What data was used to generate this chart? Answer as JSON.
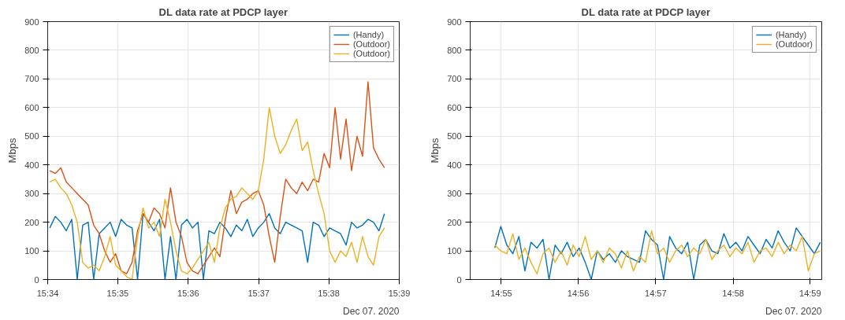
{
  "chart_data": [
    {
      "type": "line",
      "title": "DL data rate at PDCP layer",
      "ylabel": "Mbps",
      "annotations": [
        "Dec 07. 2020"
      ],
      "xlim": [
        15.5667,
        15.65
      ],
      "xticks": [
        {
          "value": 15.5667,
          "label": "15:34"
        },
        {
          "value": 15.5833,
          "label": "15:35"
        },
        {
          "value": 15.6,
          "label": "15:36"
        },
        {
          "value": 15.6167,
          "label": "15:37"
        },
        {
          "value": 15.6333,
          "label": "15:38"
        },
        {
          "value": 15.65,
          "label": "15:39"
        }
      ],
      "ylim": [
        0,
        900
      ],
      "yticks": [
        0,
        100,
        200,
        300,
        400,
        500,
        600,
        700,
        800,
        900
      ],
      "grid": true,
      "legend": "top right",
      "line_style": "solid",
      "x": [
        15.5672,
        15.5685,
        15.5698,
        15.5711,
        15.5724,
        15.5737,
        15.575,
        15.5763,
        15.5776,
        15.5789,
        15.5802,
        15.5815,
        15.5828,
        15.5841,
        15.5854,
        15.5867,
        15.588,
        15.5893,
        15.5906,
        15.5919,
        15.5932,
        15.5945,
        15.5958,
        15.5971,
        15.5984,
        15.5997,
        15.601,
        15.6023,
        15.6036,
        15.6049,
        15.6062,
        15.6075,
        15.6088,
        15.6101,
        15.6114,
        15.6127,
        15.614,
        15.6153,
        15.6166,
        15.6179,
        15.6192,
        15.6205,
        15.6218,
        15.6231,
        15.6244,
        15.6257,
        15.627,
        15.6283,
        15.6296,
        15.6309,
        15.6322,
        15.6335,
        15.6348,
        15.6361,
        15.6374,
        15.6387,
        15.64,
        15.6413,
        15.6426,
        15.6439,
        15.6452,
        15.6465
      ],
      "series": [
        {
          "name": "(Handy)",
          "color": "#0072bd",
          "values": [
            180,
            220,
            200,
            170,
            210,
            0,
            190,
            200,
            0,
            160,
            180,
            200,
            150,
            210,
            190,
            180,
            0,
            230,
            200,
            170,
            210,
            0,
            150,
            0,
            190,
            210,
            180,
            200,
            0,
            170,
            160,
            200,
            180,
            150,
            190,
            170,
            210,
            150,
            180,
            200,
            230,
            180,
            160,
            200,
            190,
            180,
            170,
            60,
            200,
            190,
            150,
            180,
            170,
            160,
            120,
            200,
            180,
            190,
            210,
            200,
            170,
            230
          ]
        },
        {
          "name": "(Outdoor)",
          "color": "#d95319",
          "values": [
            380,
            370,
            390,
            340,
            320,
            300,
            280,
            260,
            190,
            160,
            100,
            60,
            90,
            30,
            20,
            60,
            170,
            230,
            200,
            250,
            230,
            180,
            320,
            200,
            150,
            60,
            30,
            20,
            50,
            80,
            110,
            80,
            210,
            310,
            230,
            270,
            280,
            300,
            310,
            260,
            150,
            60,
            220,
            350,
            320,
            300,
            340,
            310,
            350,
            340,
            440,
            390,
            600,
            420,
            560,
            380,
            500,
            430,
            690,
            460,
            420,
            390
          ]
        },
        {
          "name": "(Outdoor)",
          "color": "#edb120",
          "values": [
            340,
            350,
            320,
            300,
            260,
            200,
            60,
            40,
            50,
            30,
            80,
            150,
            50,
            30,
            10,
            0,
            150,
            250,
            180,
            200,
            150,
            280,
            200,
            100,
            30,
            20,
            40,
            70,
            100,
            130,
            60,
            180,
            250,
            280,
            290,
            320,
            300,
            280,
            310,
            420,
            600,
            500,
            440,
            470,
            520,
            560,
            450,
            480,
            380,
            300,
            230,
            100,
            60,
            100,
            80,
            130,
            60,
            150,
            80,
            50,
            150,
            180
          ]
        }
      ]
    },
    {
      "type": "line",
      "title": "DL data rate at PDCP layer",
      "ylabel": "Mbps",
      "annotations": [
        "Dec 07. 2020"
      ],
      "xlim": [
        14.91,
        14.9858
      ],
      "xticks": [
        {
          "value": 14.9167,
          "label": "14:55"
        },
        {
          "value": 14.9333,
          "label": "14:56"
        },
        {
          "value": 14.95,
          "label": "14:57"
        },
        {
          "value": 14.9667,
          "label": "14:58"
        },
        {
          "value": 14.9833,
          "label": "14:59"
        }
      ],
      "ylim": [
        0,
        900
      ],
      "yticks": [
        0,
        100,
        200,
        300,
        400,
        500,
        600,
        700,
        800,
        900
      ],
      "grid": true,
      "legend": "top right",
      "line_style": "solid",
      "x": [
        14.9153,
        14.9166,
        14.9179,
        14.9192,
        14.9205,
        14.9218,
        14.9231,
        14.9244,
        14.9257,
        14.927,
        14.9283,
        14.9296,
        14.9309,
        14.9322,
        14.9335,
        14.9348,
        14.9361,
        14.9374,
        14.9387,
        14.94,
        14.9413,
        14.9426,
        14.9439,
        14.9452,
        14.9465,
        14.9478,
        14.9491,
        14.9504,
        14.9517,
        14.953,
        14.9543,
        14.9556,
        14.9569,
        14.9582,
        14.9595,
        14.9608,
        14.9621,
        14.9634,
        14.9647,
        14.966,
        14.9673,
        14.9686,
        14.9699,
        14.9712,
        14.9725,
        14.9738,
        14.9751,
        14.9764,
        14.9777,
        14.979,
        14.9803,
        14.9816,
        14.9829,
        14.9842,
        14.9855
      ],
      "series": [
        {
          "name": "(Handy)",
          "color": "#0072bd",
          "values": [
            110,
            185,
            120,
            90,
            150,
            30,
            130,
            110,
            140,
            0,
            120,
            90,
            130,
            80,
            110,
            60,
            0,
            100,
            70,
            90,
            60,
            100,
            80,
            70,
            60,
            170,
            140,
            120,
            0,
            150,
            110,
            90,
            130,
            0,
            120,
            140,
            100,
            90,
            160,
            110,
            130,
            100,
            150,
            120,
            90,
            140,
            110,
            170,
            130,
            100,
            180,
            150,
            120,
            90,
            130
          ]
        },
        {
          "name": "(Outdoor)",
          "color": "#edb120",
          "values": [
            120,
            100,
            90,
            160,
            70,
            110,
            60,
            20,
            90,
            110,
            60,
            100,
            50,
            120,
            80,
            150,
            70,
            100,
            60,
            110,
            90,
            40,
            100,
            30,
            80,
            60,
            170,
            90,
            110,
            60,
            100,
            120,
            80,
            110,
            90,
            140,
            70,
            100,
            120,
            80,
            110,
            90,
            130,
            60,
            100,
            110,
            80,
            130,
            90,
            120,
            100,
            150,
            30,
            90,
            100
          ]
        }
      ]
    }
  ]
}
